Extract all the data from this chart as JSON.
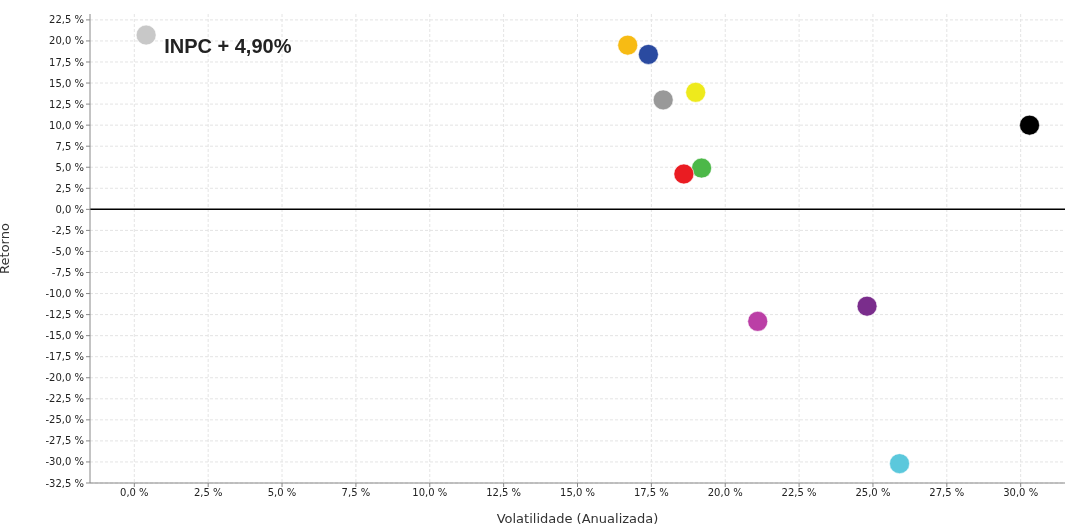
{
  "chart_data": {
    "type": "scatter",
    "xlabel": "Volatilidade (Anualizada)",
    "ylabel": "Retorno",
    "x": [
      0.4,
      16.7,
      17.4,
      17.9,
      19.0,
      30.3,
      19.2,
      18.6,
      21.1,
      24.8,
      25.9
    ],
    "values": [
      20.7,
      19.5,
      18.4,
      13.0,
      13.9,
      10.0,
      4.9,
      4.2,
      -13.3,
      -11.5,
      -30.2
    ],
    "colors": [
      "#c8c8c8",
      "#f7bb14",
      "#2a4aa0",
      "#999999",
      "#eeea1c",
      "#000000",
      "#4cb848",
      "#ea1c22",
      "#bb3fa6",
      "#7a2d8c",
      "#5bc8dc"
    ],
    "marker": "circle",
    "xlim": [
      -1.5,
      31.5
    ],
    "ylim": [
      -32.5,
      23.2
    ],
    "xticks": [
      {
        "value": 0,
        "label": "0,0 %"
      },
      {
        "value": 2.5,
        "label": "2,5 %"
      },
      {
        "value": 5,
        "label": "5,0 %"
      },
      {
        "value": 7.5,
        "label": "7,5 %"
      },
      {
        "value": 10,
        "label": "10,0 %"
      },
      {
        "value": 12.5,
        "label": "12,5 %"
      },
      {
        "value": 15,
        "label": "15,0 %"
      },
      {
        "value": 17.5,
        "label": "17,5 %"
      },
      {
        "value": 20,
        "label": "20,0 %"
      },
      {
        "value": 22.5,
        "label": "22,5 %"
      },
      {
        "value": 25,
        "label": "25,0 %"
      },
      {
        "value": 27.5,
        "label": "27,5 %"
      },
      {
        "value": 30,
        "label": "30,0 %"
      }
    ],
    "yticks": [
      {
        "value": 22.5,
        "label": "22,5 %"
      },
      {
        "value": 20,
        "label": "20,0 %"
      },
      {
        "value": 17.5,
        "label": "17,5 %"
      },
      {
        "value": 15,
        "label": "15,0 %"
      },
      {
        "value": 12.5,
        "label": "12,5 %"
      },
      {
        "value": 10,
        "label": "10,0 %"
      },
      {
        "value": 7.5,
        "label": "7,5 %"
      },
      {
        "value": 5,
        "label": "5,0 %"
      },
      {
        "value": 2.5,
        "label": "2,5 %"
      },
      {
        "value": 0,
        "label": "0,0 %"
      },
      {
        "value": -2.5,
        "label": "-2,5 %"
      },
      {
        "value": -5,
        "label": "-5,0 %"
      },
      {
        "value": -7.5,
        "label": "-7,5 %"
      },
      {
        "value": -10,
        "label": "-10,0 %"
      },
      {
        "value": -12.5,
        "label": "-12,5 %"
      },
      {
        "value": -15,
        "label": "-15,0 %"
      },
      {
        "value": -17.5,
        "label": "-17,5 %"
      },
      {
        "value": -20,
        "label": "-20,0 %"
      },
      {
        "value": -22.5,
        "label": "-22,5 %"
      },
      {
        "value": -25,
        "label": "-25,0 %"
      },
      {
        "value": -27.5,
        "label": "-27,5 %"
      },
      {
        "value": -30,
        "label": "-30,0 %"
      },
      {
        "value": -32.5,
        "label": "-32,5 %"
      }
    ],
    "grid": true,
    "ref_lines": [
      {
        "axis": "y",
        "value": 0,
        "color": "#000000"
      }
    ],
    "annotations": [
      {
        "text": "INPC + 4,90%",
        "x": 0.4,
        "y": 20.7
      }
    ]
  }
}
